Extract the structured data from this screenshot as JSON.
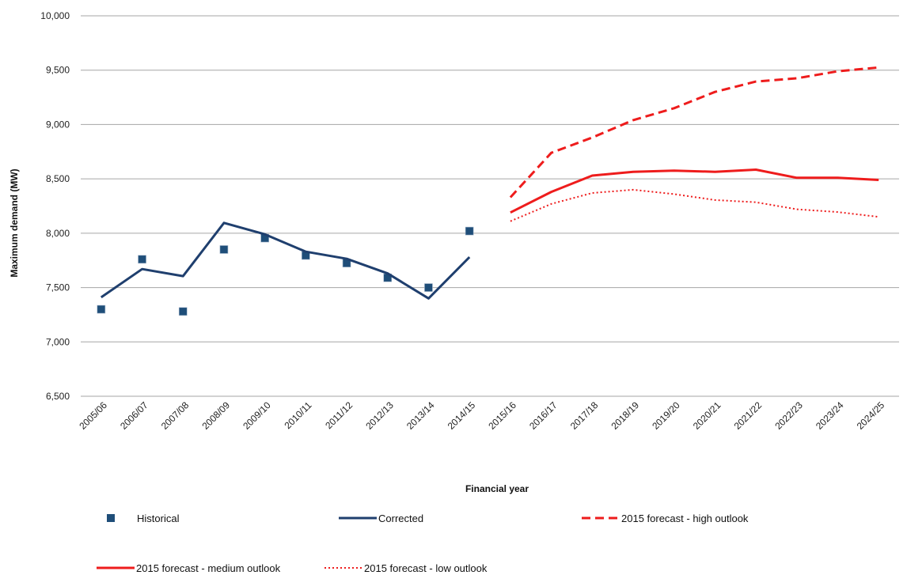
{
  "chart_data": {
    "type": "line",
    "title": "",
    "xlabel": "Financial year",
    "ylabel": "Maximum demand (MW)",
    "ylim": [
      6500,
      10000
    ],
    "yticks": [
      "6,500",
      "7,000",
      "7,500",
      "8,000",
      "8,500",
      "9,000",
      "9,500",
      "10,000"
    ],
    "grid": "horizontal",
    "legend_position": "bottom",
    "categories": [
      "2005/06",
      "2006/07",
      "2007/08",
      "2008/09",
      "2009/10",
      "2010/11",
      "2011/12",
      "2012/13",
      "2013/14",
      "2014/15",
      "2015/16",
      "2016/17",
      "2017/18",
      "2018/19",
      "2019/20",
      "2020/21",
      "2021/22",
      "2022/23",
      "2023/24",
      "2024/25"
    ],
    "series": [
      {
        "name": "Historical",
        "style": "marker-square",
        "color": "#1f4e79",
        "values": [
          7300,
          7760,
          7280,
          7850,
          7955,
          7795,
          7725,
          7590,
          7500,
          8020,
          null,
          null,
          null,
          null,
          null,
          null,
          null,
          null,
          null,
          null
        ]
      },
      {
        "name": "Corrected",
        "style": "solid",
        "color": "#1f3f6e",
        "values": [
          7410,
          7670,
          7605,
          8095,
          7990,
          7830,
          7765,
          7630,
          7400,
          7780,
          null,
          null,
          null,
          null,
          null,
          null,
          null,
          null,
          null,
          null
        ]
      },
      {
        "name": "2015 forecast - high outlook",
        "style": "dashed",
        "color": "#ee1c1c",
        "values": [
          null,
          null,
          null,
          null,
          null,
          null,
          null,
          null,
          null,
          null,
          8330,
          8740,
          8880,
          9040,
          9150,
          9300,
          9395,
          9425,
          9490,
          9525
        ]
      },
      {
        "name": "2015 forecast - medium outlook",
        "style": "solid",
        "color": "#ee1c1c",
        "values": [
          null,
          null,
          null,
          null,
          null,
          null,
          null,
          null,
          null,
          null,
          8190,
          8380,
          8530,
          8565,
          8575,
          8565,
          8585,
          8510,
          8510,
          8490
        ]
      },
      {
        "name": "2015 forecast - low outlook",
        "style": "dotted",
        "color": "#ee1c1c",
        "values": [
          null,
          null,
          null,
          null,
          null,
          null,
          null,
          null,
          null,
          null,
          8110,
          8270,
          8370,
          8400,
          8360,
          8305,
          8285,
          8220,
          8195,
          8150
        ]
      }
    ]
  }
}
